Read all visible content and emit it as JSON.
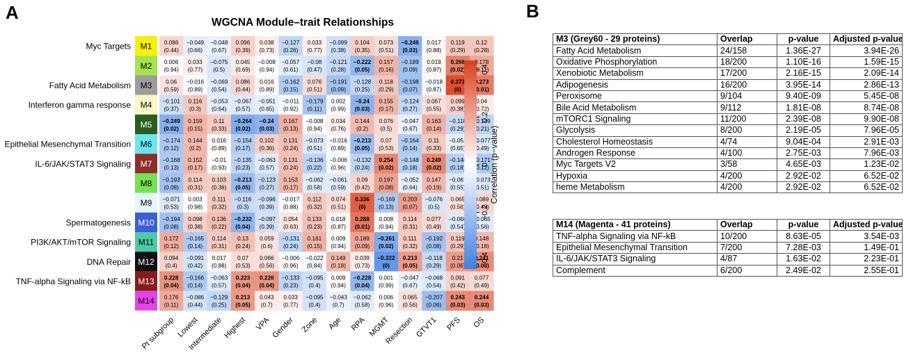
{
  "panel_labels": {
    "a": "A",
    "b": "B"
  },
  "chart_data": {
    "type": "heatmap",
    "title": "WGCNA Module–trait Relationships",
    "colorbar_label": "Correlation (p−value)",
    "colorbar_range": [
      -0.4,
      0.4
    ],
    "colorbar_ticks": [
      "0.4",
      "0.2",
      "0",
      "−0.2",
      "−0.4"
    ],
    "colors": {
      "negative": "#3d7fe0",
      "zero": "#ffffff",
      "positive": "#d9401f"
    },
    "traits": [
      "Pt subgroup",
      "Lowest",
      "Intermediate",
      "Highest",
      "VPA",
      "Gender",
      "Zone",
      "Age",
      "RPA",
      "MGMT",
      "Resection",
      "GTVT1",
      "PFS",
      "OS"
    ],
    "modules": [
      {
        "id": "M1",
        "color": "#f5f10a",
        "label": "Myc Targets"
      },
      {
        "id": "M2",
        "color": "#a6e34d",
        "label": ""
      },
      {
        "id": "M3",
        "color": "#9c9c9c",
        "label": "Fatty Acid Metabolism"
      },
      {
        "id": "M4",
        "color": "#fbf6c7",
        "label": "Interferon gamma response"
      },
      {
        "id": "M5",
        "color": "#2a5e1f",
        "label": ""
      },
      {
        "id": "M6",
        "color": "#69e6f2",
        "label": "Epithelial Mesenchymal Transition"
      },
      {
        "id": "M7",
        "color": "#8c2f2a",
        "label": "IL-6/JAK/STAT3 Signaling"
      },
      {
        "id": "M8",
        "color": "#76e152",
        "label": ""
      },
      {
        "id": "M9",
        "color": "#e8f4fb",
        "label": ""
      },
      {
        "id": "M10",
        "color": "#3a5fd6",
        "label": "Spermatogenesis"
      },
      {
        "id": "M11",
        "color": "#4cc9a9",
        "label": "PI3K/AKT/mTOR  Signaling"
      },
      {
        "id": "M12",
        "color": "#111111",
        "label": "DNA Repair"
      },
      {
        "id": "M13",
        "color": "#8a1a1a",
        "label": "TNF-alpha Signaling via NF-kB"
      },
      {
        "id": "M14",
        "color": "#e445e8",
        "label": ""
      }
    ],
    "correlations": [
      [
        "0.086",
        "−0.049",
        "−0.048",
        "0.096",
        "0.038",
        "−0.127",
        "0.033",
        "−0.099",
        "0.104",
        "0.073",
        "−0.246",
        "0.017",
        "0.119",
        "0.12"
      ],
      [
        "0.006",
        "0.033",
        "−0.075",
        "0.045",
        "−0.008",
        "−0.057",
        "−0.08",
        "−0.121",
        "−0.222",
        "0.157",
        "−0.189",
        "0.019",
        "0.266",
        "0.178"
      ],
      [
        "0.06",
        "−0.016",
        "−0.069",
        "0.086",
        "0.016",
        "−0.162",
        "0.076",
        "−0.191",
        "−0.128",
        "0.118",
        "−0.198",
        "−0.018",
        "0.373",
        "0.273"
      ],
      [
        "−0.101",
        "0.116",
        "−0.053",
        "−0.067",
        "−0.051",
        "−0.011",
        "−0.179",
        "0.002",
        "−0.24",
        "0.155",
        "−0.124",
        "0.067",
        "0.099",
        "0.04"
      ],
      [
        "−0.249",
        "0.159",
        "0.11",
        "−0.264",
        "−0.24",
        "0.167",
        "−0.008",
        "0.034",
        "0.144",
        "0.076",
        "−0.047",
        "0.163",
        "−0.118",
        "−0.139"
      ],
      [
        "−0.174",
        "0.144",
        "0.016",
        "−0.154",
        "0.102",
        "0.131",
        "−0.073",
        "−0.016",
        "−0.213",
        "0.07",
        "−0.164",
        "0.11",
        "−0.051",
        "−0.077"
      ],
      [
        "−0.168",
        "0.152",
        "−0.01",
        "−0.135",
        "−0.063",
        "0.131",
        "−0.136",
        "−0.006",
        "−0.132",
        "0.254",
        "−0.148",
        "0.249",
        "−0.148",
        "−0.171"
      ],
      [
        "−0.193",
        "0.114",
        "0.103",
        "−0.213",
        "−0.123",
        "0.153",
        "−0.062",
        "−0.061",
        "0.09",
        "0.197",
        "−0.052",
        "0.147",
        "−0.067",
        "−0.073"
      ],
      [
        "−0.071",
        "0.003",
        "0.111",
        "−0.116",
        "−0.096",
        "−0.017",
        "0.112",
        "0.074",
        "0.336",
        "−0.169",
        "0.203",
        "−0.076",
        "0.065",
        "0.089"
      ],
      [
        "−0.194",
        "0.098",
        "0.136",
        "−0.232",
        "−0.097",
        "0.054",
        "0.133",
        "0.018",
        "0.288",
        "0.008",
        "0.114",
        "0.077",
        "−0.068",
        "−0.065"
      ],
      [
        "0.172",
        "−0.165",
        "0.114",
        "0.13",
        "0.059",
        "−0.131",
        "0.161",
        "0.009",
        "0.189",
        "−0.261",
        "0.111",
        "−0.192",
        "0.119",
        "0.148"
      ],
      [
        "0.094",
        "−0.091",
        "0.017",
        "0.07",
        "0.066",
        "−0.006",
        "−0.022",
        "0.149",
        "0.039",
        "−0.322",
        "0.213",
        "−0.118",
        "0.21",
        "0.241"
      ],
      [
        "0.228",
        "−0.166",
        "−0.063",
        "0.223",
        "0.226",
        "−0.133",
        "−0.095",
        "0.009",
        "−0.228",
        "0.001",
        "−0.047",
        "−0.068",
        "0.091",
        "0.077"
      ],
      [
        "0.176",
        "−0.086",
        "−0.129",
        "0.213",
        "0.043",
        "0.033",
        "−0.095",
        "−0.043",
        "−0.062",
        "0.006",
        "0.065",
        "−0.207",
        "0.243",
        "0.244"
      ]
    ],
    "pvalues": [
      [
        "(0.44)",
        "(0.66)",
        "(0.67)",
        "(0.39)",
        "(0.73)",
        "(0.26)",
        "(0.77)",
        "(0.38)",
        "(0.35)",
        "(0.51)",
        "(0.03)",
        "(0.88)",
        "(0.29)",
        "(0.28)"
      ],
      [
        "(0.94)",
        "(0.77)",
        "(0.5)",
        "(0.69)",
        "(0.94)",
        "(0.61)",
        "(0.47)",
        "(0.28)",
        "(0.05)",
        "(0.16)",
        "(0.09)",
        "(0.87)",
        "(0.02)",
        "(0.11)"
      ],
      [
        "(0.59)",
        "(0.89)",
        "(0.54)",
        "(0.44)",
        "(0.89)",
        "(0.15)",
        "(0.51)",
        "(0.09)",
        "(0.25)",
        "(0.29)",
        "(0.07)",
        "(0.87)",
        "(0)",
        "(0.01)"
      ],
      [
        "(0.37)",
        "(0.3)",
        "(0.64)",
        "(0.57)",
        "(0.65)",
        "(0.92)",
        "(0.11)",
        "(0.99)",
        "(0.03)",
        "(0.17)",
        "(0.27)",
        "(0.55)",
        "(0.38)",
        "(0.72)"
      ],
      [
        "(0.02)",
        "(0.15)",
        "(0.33)",
        "(0.02)",
        "(0.03)",
        "(0.13)",
        "(0.94)",
        "(0.76)",
        "(0.2)",
        "(0.5)",
        "(0.67)",
        "(0.14)",
        "(0.29)",
        "(0.21)"
      ],
      [
        "(0.12)",
        "(0.2)",
        "(0.89)",
        "(0.17)",
        "(0.36)",
        "(0.24)",
        "(0.51)",
        "(0.89)",
        "(0.05)",
        "(0.53)",
        "(0.14)",
        "(0.33)",
        "(0.65)",
        "(0.49)"
      ],
      [
        "(0.13)",
        "(0.17)",
        "(0.93)",
        "(0.23)",
        "(0.57)",
        "(0.24)",
        "(0.22)",
        "(0.96)",
        "(0.24)",
        "(0.02)",
        "(0.18)",
        "(0.02)",
        "(0.18)",
        "(0.12)"
      ],
      [
        "(0.08)",
        "(0.31)",
        "(0.36)",
        "(0.05)",
        "(0.27)",
        "(0.17)",
        "(0.58)",
        "(0.59)",
        "(0.42)",
        "(0.08)",
        "(0.64)",
        "(0.19)",
        "(0.55)",
        "(0.51)"
      ],
      [
        "(0.53)",
        "(0.98)",
        "(0.32)",
        "(0.3)",
        "(0.39)",
        "(0.88)",
        "(0.32)",
        "(0.51)",
        "(0)",
        "(0.13)",
        "(0.07)",
        "(0.5)",
        "(0.56)",
        "(0.43)"
      ],
      [
        "(0.08)",
        "(0.38)",
        "(0.22)",
        "(0.04)",
        "(0.39)",
        "(0.63)",
        "(0.23)",
        "(0.87)",
        "(0.01)",
        "(0.94)",
        "(0.31)",
        "(0.49)",
        "(0.54)",
        "(0.56)"
      ],
      [
        "(0.12)",
        "(0.14)",
        "(0.31)",
        "(0.24)",
        "(0.6)",
        "(0.24)",
        "(0.15)",
        "(0.94)",
        "(0.09)",
        "(0.02)",
        "(0.32)",
        "(0.08)",
        "(0.29)",
        "(0.18)"
      ],
      [
        "(0.4)",
        "(0.42)",
        "(0.88)",
        "(0.53)",
        "(0.56)",
        "(0.96)",
        "(0.84)",
        "(0.18)",
        "(0.73)",
        "(0)",
        "(0.05)",
        "(0.29)",
        "(0.06)",
        "(0.03)"
      ],
      [
        "(0.04)",
        "(0.14)",
        "(0.57)",
        "(0.04)",
        "(0.04)",
        "(0.23)",
        "(0.4)",
        "(0.94)",
        "(0.04)",
        "(0.99)",
        "(0.67)",
        "(0.54)",
        "(0.42)",
        "(0.49)"
      ],
      [
        "(0.11)",
        "(0.44)",
        "(0.25)",
        "(0.05)",
        "(0.7)",
        "(0.77)",
        "(0.4)",
        "(0.7)",
        "(0.58)",
        "(0.96)",
        "(0.56)",
        "(0.06)",
        "(0.03)",
        "(0.03)"
      ]
    ],
    "bold": [
      [
        0,
        0,
        0,
        0,
        0,
        0,
        0,
        0,
        0,
        0,
        1,
        0,
        0,
        0
      ],
      [
        0,
        0,
        0,
        0,
        0,
        0,
        0,
        0,
        1,
        0,
        0,
        0,
        1,
        0
      ],
      [
        0,
        0,
        0,
        0,
        0,
        0,
        0,
        0,
        0,
        0,
        0,
        0,
        1,
        1
      ],
      [
        0,
        0,
        0,
        0,
        0,
        0,
        0,
        0,
        1,
        0,
        0,
        0,
        0,
        0
      ],
      [
        1,
        0,
        0,
        1,
        1,
        0,
        0,
        0,
        0,
        0,
        0,
        0,
        0,
        0
      ],
      [
        0,
        0,
        0,
        0,
        0,
        0,
        0,
        0,
        1,
        0,
        0,
        0,
        0,
        0
      ],
      [
        0,
        0,
        0,
        0,
        0,
        0,
        0,
        0,
        0,
        1,
        0,
        1,
        0,
        0
      ],
      [
        0,
        0,
        0,
        1,
        0,
        0,
        0,
        0,
        0,
        0,
        0,
        0,
        0,
        0
      ],
      [
        0,
        0,
        0,
        0,
        0,
        0,
        0,
        0,
        1,
        0,
        0,
        0,
        0,
        0
      ],
      [
        0,
        0,
        0,
        1,
        0,
        0,
        0,
        0,
        1,
        0,
        0,
        0,
        0,
        0
      ],
      [
        0,
        0,
        0,
        0,
        0,
        0,
        0,
        0,
        0,
        1,
        0,
        0,
        0,
        0
      ],
      [
        0,
        0,
        0,
        0,
        0,
        0,
        0,
        0,
        0,
        1,
        1,
        0,
        0,
        1
      ],
      [
        1,
        0,
        0,
        1,
        1,
        0,
        0,
        0,
        1,
        0,
        0,
        0,
        0,
        0
      ],
      [
        0,
        0,
        0,
        1,
        0,
        0,
        0,
        0,
        0,
        0,
        0,
        0,
        1,
        1
      ]
    ]
  },
  "tables": [
    {
      "title": "M3 (Grey60 - 29 proteins)",
      "headers": [
        "Overlap",
        "p-value",
        "Adjusted p-value"
      ],
      "rows": [
        [
          "Fatty Acid Metabolism",
          "24/158",
          "1.36E-27",
          "3.94E-26"
        ],
        [
          "Oxidative Phosphorylation",
          "18/200",
          "1.10E-16",
          "1.59E-15"
        ],
        [
          "Xenobiotic Metabolism",
          "17/200",
          "2.16E-15",
          "2.09E-14"
        ],
        [
          "Adipogenesis",
          "16/200",
          "3.95E-14",
          "2.86E-13"
        ],
        [
          "Peroxisome",
          "9/104",
          "9.40E-09",
          "5.45E-08"
        ],
        [
          "Bile Acid Metabolism",
          "9/112",
          "1.81E-08",
          "8.74E-08"
        ],
        [
          "mTORC1 Signaling",
          "11/200",
          "2.39E-08",
          "9.90E-08"
        ],
        [
          "Glycolysis",
          "8/200",
          "2.19E-05",
          "7.96E-05"
        ],
        [
          "Cholesterol Homeostasis",
          "4/74",
          "9.04E-04",
          "2.91E-03"
        ],
        [
          "Androgen Response",
          "4/100",
          "2.75E-03",
          "7.96E-03"
        ],
        [
          "Myc Targets V2",
          "3/58",
          "4.65E-03",
          "1.23E-02"
        ],
        [
          "Hypoxia",
          "4/200",
          "2.92E-02",
          "6.52E-02"
        ],
        [
          "heme Metabolism",
          "4/200",
          "2.92E-02",
          "6.52E-02"
        ]
      ]
    },
    {
      "title": "M14 (Magenta - 41 proteins)",
      "headers": [
        "Overlap",
        "p-value",
        "Adjusted p-value"
      ],
      "rows": [
        [
          "TNF-alpha Signaling via NF-kB",
          "10/200",
          "8.63E-05",
          "3.54E-03"
        ],
        [
          "Epithelial Mesenchymal Transition",
          "7/200",
          "7.28E-03",
          "1.49E-01"
        ],
        [
          "IL-6/JAK/STAT3 Signaling",
          "4/87",
          "1.63E-02",
          "2.23E-01"
        ],
        [
          "Complement",
          "6/200",
          "2.49E-02",
          "2.55E-01"
        ]
      ]
    }
  ]
}
